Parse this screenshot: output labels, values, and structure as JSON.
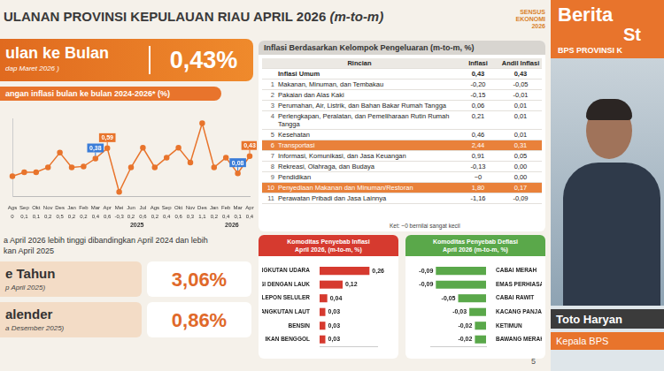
{
  "header": {
    "title": "ULANAN PROVINSI KEPULAUAN RIAU APRIL 2026",
    "title_suffix": "(m-to-m)",
    "logo": [
      "SENSUS",
      "EKONOMI",
      "2026"
    ]
  },
  "summary": {
    "label": "ulan ke Bulan",
    "sub": "dap Maret 2026 )",
    "value": "0,43%"
  },
  "chart_data": [
    {
      "type": "line",
      "title": "angan inflasi bulan ke bulan 2024-2026* (%)",
      "categories": [
        "Ags",
        "Sep",
        "Okt",
        "Nov",
        "Des",
        "Jan",
        "Feb",
        "Mar",
        "Apr",
        "Mei",
        "Jun",
        "Jul",
        "Ags",
        "Sep",
        "Okt",
        "Nov",
        "Des",
        "Jan",
        "Feb",
        "Mar",
        "Apr"
      ],
      "values": [
        0.02,
        0.1,
        0.1,
        0.2,
        0.5,
        0.2,
        0.22,
        0.38,
        0.59,
        -0.3,
        0.2,
        0.6,
        0.2,
        0.4,
        0.6,
        0.3,
        1.1,
        0.2,
        0.4,
        0.08,
        0.43
      ],
      "value_labels": [
        "0",
        "0,1",
        "0,1",
        "0,2",
        "0,5",
        "0,2",
        "0,2",
        "0,4",
        "0,6",
        "-0,3",
        "0,2",
        "0,6",
        "0,2",
        "0,4",
        "0,6",
        "0,3",
        "1,1",
        "0,2",
        "0,4",
        "0,1",
        "0,4"
      ],
      "highlights": [
        null,
        null,
        null,
        null,
        null,
        null,
        null,
        {
          "label": "0,38",
          "color": "#3b7dd8"
        },
        {
          "label": "0,59",
          "color": "#e8742c"
        },
        null,
        null,
        null,
        null,
        null,
        null,
        null,
        null,
        null,
        null,
        {
          "label": "0,08",
          "color": "#3b7dd8"
        },
        {
          "label": "0,43",
          "color": "#e8742c"
        }
      ],
      "years": [
        null,
        null,
        null,
        null,
        null,
        "2025",
        "2025",
        "2025",
        "2025",
        "2025",
        "2025",
        "2025",
        "2025",
        "2025",
        "2025",
        "2025",
        "2025",
        "2026",
        "2026",
        "2026",
        "2026"
      ],
      "color": "#e8742c",
      "marker": "circle",
      "ylim": [
        -0.4,
        1.2
      ],
      "tick_labels": "x",
      "grid": false
    },
    {
      "type": "bar",
      "orientation": "horizontal",
      "title": "Komoditas Penyebab Inflasi",
      "subtitle": "April 2026, (m-to-m, %)",
      "categories": [
        "ANGKUTAN UDARA",
        "NASI DENGAN LAUK",
        "TELEPON SELULER",
        "ANGKUTAN LAUT",
        "BENSIN",
        "IKAN BENGGOL"
      ],
      "values": [
        0.26,
        0.12,
        0.04,
        0.03,
        0.03,
        0.03
      ],
      "value_labels": [
        "0,26",
        "0,12",
        "0,04",
        "0,03",
        "0,03",
        "0,03"
      ],
      "color": "#d63a2f",
      "xlim": [
        0,
        0.3
      ],
      "tick_labels": "y",
      "data_labels": true,
      "grid": false
    },
    {
      "type": "bar",
      "orientation": "horizontal",
      "title": "Komoditas Penyebab Deflasi",
      "subtitle": "April 2026 (m-to-m, %)",
      "categories": [
        "CABAI MERAH",
        "EMAS PERHIASAN",
        "CABAI RAWIT",
        "KACANG PANJANG",
        "KETIMUN",
        "BAWANG MERAH"
      ],
      "values": [
        -0.09,
        -0.09,
        -0.05,
        -0.03,
        -0.02,
        -0.02
      ],
      "value_labels": [
        "-0,09",
        "-0,09",
        "-0,05",
        "-0,03",
        "-0,02",
        "-0,02"
      ],
      "color": "#5aa84a",
      "xlim": [
        -0.1,
        0
      ],
      "tick_labels": "y",
      "data_labels": true,
      "grid": false
    }
  ],
  "remarks": [
    "a April 2026 lebih tinggi dibandingkan April 2024 dan lebih",
    "kan April 2025"
  ],
  "boxes": [
    {
      "label": "e Tahun",
      "sub": "p April 2025)",
      "value": "3,06%"
    },
    {
      "label": "alender",
      "sub": "a Desember 2025)",
      "value": "0,86%"
    }
  ],
  "table": {
    "title": "Inflasi Berdasarkan Kelompok Pengeluaran (m-to-m, %)",
    "columns": [
      "Rincian",
      "Inflasi",
      "Andil Inflasi"
    ],
    "rows": [
      {
        "name": "Inflasi Umum",
        "inflasi": "0,43",
        "andil": "0,43"
      },
      {
        "no": "1",
        "name": "Makanan, Minuman, dan Tembakau",
        "inflasi": "-0,20",
        "andil": "-0,05"
      },
      {
        "no": "2",
        "name": "Pakaian dan Alas Kaki",
        "inflasi": "-0,15",
        "andil": "-0,01"
      },
      {
        "no": "3",
        "name": "Perumahan, Air, Listrik, dan Bahan Bakar Rumah Tangga",
        "inflasi": "0,06",
        "andil": "0,01"
      },
      {
        "no": "4",
        "name": "Perlengkapan, Peralatan, dan Pemeliharaan Rutin Rumah Tangga",
        "inflasi": "0,21",
        "andil": "0,01"
      },
      {
        "no": "5",
        "name": "Kesehatan",
        "inflasi": "0,46",
        "andil": "0,01"
      },
      {
        "no": "6",
        "name": "Transportasi",
        "inflasi": "2,44",
        "andil": "0,31",
        "highlight": true
      },
      {
        "no": "7",
        "name": "Informasi, Komunikasi, dan Jasa Keuangan",
        "inflasi": "0,91",
        "andil": "0,05"
      },
      {
        "no": "8",
        "name": "Rekreasi, Olahraga, dan Budaya",
        "inflasi": "-0,13",
        "andil": "0,00"
      },
      {
        "no": "9",
        "name": "Pendidikan",
        "inflasi": "~0",
        "andil": "0,00"
      },
      {
        "no": "10",
        "name": "Penyediaan Makanan dan Minuman/Restoran",
        "inflasi": "1,80",
        "andil": "0,17",
        "highlight": true
      },
      {
        "no": "11",
        "name": "Perawatan Pribadi dan Jasa Lainnya",
        "inflasi": "-1,16",
        "andil": "-0,09"
      }
    ],
    "note": "Ket: ~0 bernilai sangat kecil"
  },
  "presenter": {
    "banner": [
      "Berita",
      "St"
    ],
    "org": "BPS PROVINSI K",
    "name": "Toto Haryan",
    "role": "Kepala BPS"
  },
  "page": "5"
}
